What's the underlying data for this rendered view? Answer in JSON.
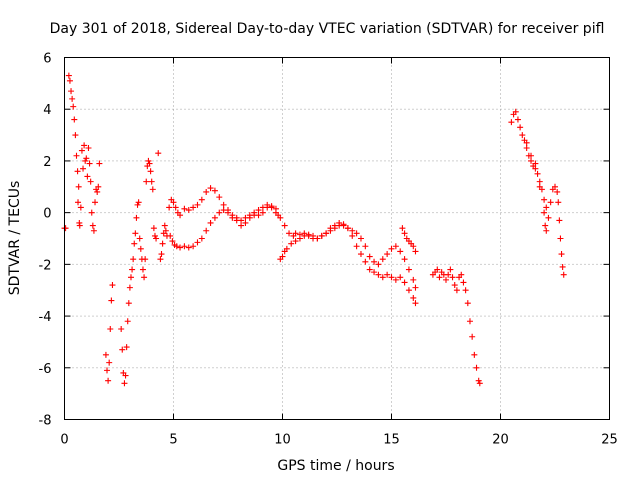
{
  "chart_data": {
    "type": "scatter",
    "title": "Day 301 of 2018, Sidereal Day-to-day VTEC variation (SDTVAR) for receiver pifl",
    "xlabel": "GPS time / hours",
    "ylabel": "SDTVAR / TECUs",
    "xlim": [
      0,
      25
    ],
    "ylim": [
      -8,
      6
    ],
    "xticks": [
      0,
      5,
      10,
      15,
      20,
      25
    ],
    "yticks": [
      -8,
      -6,
      -4,
      -2,
      0,
      2,
      4,
      6
    ],
    "grid": true,
    "marker": "+",
    "color": "#ff0000",
    "series": [
      {
        "name": "SDTVAR",
        "points": [
          [
            0.0,
            -0.6
          ],
          [
            0.05,
            -0.6
          ],
          [
            0.2,
            5.3
          ],
          [
            0.25,
            5.1
          ],
          [
            0.3,
            4.7
          ],
          [
            0.35,
            4.4
          ],
          [
            0.4,
            4.1
          ],
          [
            0.45,
            3.6
          ],
          [
            0.5,
            3.0
          ],
          [
            0.55,
            2.2
          ],
          [
            0.6,
            1.6
          ],
          [
            0.62,
            0.4
          ],
          [
            0.65,
            1.0
          ],
          [
            0.68,
            -0.4
          ],
          [
            0.7,
            -0.5
          ],
          [
            0.75,
            0.2
          ],
          [
            0.8,
            2.4
          ],
          [
            0.85,
            1.7
          ],
          [
            0.9,
            2.6
          ],
          [
            0.95,
            2.0
          ],
          [
            1.0,
            2.1
          ],
          [
            1.05,
            1.4
          ],
          [
            1.1,
            2.5
          ],
          [
            1.15,
            1.9
          ],
          [
            1.2,
            1.2
          ],
          [
            1.25,
            0.0
          ],
          [
            1.3,
            -0.5
          ],
          [
            1.35,
            -0.7
          ],
          [
            1.4,
            0.4
          ],
          [
            1.45,
            0.9
          ],
          [
            1.5,
            0.8
          ],
          [
            1.55,
            1.0
          ],
          [
            1.6,
            1.9
          ],
          [
            1.9,
            -5.5
          ],
          [
            1.95,
            -6.1
          ],
          [
            2.0,
            -6.5
          ],
          [
            2.05,
            -5.8
          ],
          [
            2.1,
            -4.5
          ],
          [
            2.15,
            -3.4
          ],
          [
            2.2,
            -2.8
          ],
          [
            2.6,
            -4.5
          ],
          [
            2.65,
            -5.3
          ],
          [
            2.7,
            -6.2
          ],
          [
            2.75,
            -6.6
          ],
          [
            2.8,
            -6.3
          ],
          [
            2.85,
            -5.2
          ],
          [
            2.9,
            -4.2
          ],
          [
            2.95,
            -3.5
          ],
          [
            3.0,
            -2.9
          ],
          [
            3.05,
            -2.5
          ],
          [
            3.1,
            -2.2
          ],
          [
            3.15,
            -1.8
          ],
          [
            3.2,
            -1.2
          ],
          [
            3.25,
            -0.8
          ],
          [
            3.3,
            -0.2
          ],
          [
            3.35,
            0.3
          ],
          [
            3.4,
            0.4
          ],
          [
            3.45,
            -1.0
          ],
          [
            3.5,
            -1.4
          ],
          [
            3.55,
            -1.8
          ],
          [
            3.6,
            -2.2
          ],
          [
            3.65,
            -2.5
          ],
          [
            3.7,
            -1.8
          ],
          [
            3.75,
            1.2
          ],
          [
            3.8,
            1.8
          ],
          [
            3.85,
            2.0
          ],
          [
            3.9,
            1.9
          ],
          [
            3.95,
            1.6
          ],
          [
            4.0,
            1.2
          ],
          [
            4.05,
            0.9
          ],
          [
            4.1,
            -0.6
          ],
          [
            4.15,
            -0.9
          ],
          [
            4.2,
            -1.0
          ],
          [
            4.3,
            2.3
          ],
          [
            4.4,
            -1.8
          ],
          [
            4.45,
            -1.6
          ],
          [
            4.5,
            -1.2
          ],
          [
            4.55,
            -0.8
          ],
          [
            4.6,
            -0.5
          ],
          [
            4.65,
            -0.7
          ],
          [
            4.7,
            -0.9
          ],
          [
            4.8,
            0.2
          ],
          [
            4.9,
            0.5
          ],
          [
            5.0,
            0.4
          ],
          [
            5.1,
            0.2
          ],
          [
            5.2,
            0.0
          ],
          [
            5.3,
            -0.1
          ],
          [
            4.85,
            -0.9
          ],
          [
            4.95,
            -1.1
          ],
          [
            5.05,
            -1.25
          ],
          [
            5.15,
            -1.3
          ],
          [
            5.3,
            -1.35
          ],
          [
            5.5,
            -1.3
          ],
          [
            5.7,
            -1.35
          ],
          [
            5.9,
            -1.3
          ],
          [
            6.1,
            -1.15
          ],
          [
            6.3,
            -1.0
          ],
          [
            6.5,
            -0.7
          ],
          [
            6.7,
            -0.4
          ],
          [
            6.9,
            -0.2
          ],
          [
            7.1,
            0.0
          ],
          [
            7.3,
            0.1
          ],
          [
            7.5,
            0.0
          ],
          [
            7.7,
            -0.2
          ],
          [
            5.5,
            0.15
          ],
          [
            5.7,
            0.1
          ],
          [
            5.9,
            0.2
          ],
          [
            6.1,
            0.3
          ],
          [
            6.3,
            0.5
          ],
          [
            6.5,
            0.8
          ],
          [
            6.7,
            0.95
          ],
          [
            6.9,
            0.85
          ],
          [
            7.1,
            0.6
          ],
          [
            7.3,
            0.3
          ],
          [
            7.5,
            0.1
          ],
          [
            7.7,
            -0.1
          ],
          [
            7.9,
            -0.3
          ],
          [
            8.1,
            -0.5
          ],
          [
            8.3,
            -0.4
          ],
          [
            8.5,
            -0.2
          ],
          [
            8.7,
            -0.1
          ],
          [
            8.9,
            0.1
          ],
          [
            9.1,
            0.2
          ],
          [
            9.3,
            0.3
          ],
          [
            9.5,
            0.2
          ],
          [
            9.7,
            0.0
          ],
          [
            9.9,
            -0.2
          ],
          [
            10.1,
            -0.5
          ],
          [
            10.3,
            -0.8
          ],
          [
            10.5,
            -0.9
          ],
          [
            7.9,
            -0.2
          ],
          [
            8.1,
            -0.3
          ],
          [
            8.3,
            -0.2
          ],
          [
            8.5,
            -0.1
          ],
          [
            8.7,
            0.0
          ],
          [
            8.9,
            -0.1
          ],
          [
            9.1,
            0.0
          ],
          [
            9.3,
            0.2
          ],
          [
            9.5,
            0.25
          ],
          [
            9.7,
            0.15
          ],
          [
            9.8,
            -0.1
          ],
          [
            9.9,
            -1.8
          ],
          [
            10.0,
            -1.7
          ],
          [
            10.1,
            -1.5
          ],
          [
            10.2,
            -1.4
          ],
          [
            10.4,
            -1.2
          ],
          [
            10.6,
            -1.1
          ],
          [
            10.8,
            -1.0
          ],
          [
            11.0,
            -0.9
          ],
          [
            11.2,
            -0.85
          ],
          [
            11.4,
            -0.9
          ],
          [
            11.6,
            -1.0
          ],
          [
            11.8,
            -0.9
          ],
          [
            12.0,
            -0.8
          ],
          [
            12.2,
            -0.7
          ],
          [
            12.4,
            -0.6
          ],
          [
            12.6,
            -0.5
          ],
          [
            12.8,
            -0.5
          ],
          [
            13.0,
            -0.6
          ],
          [
            13.2,
            -0.9
          ],
          [
            13.4,
            -1.3
          ],
          [
            13.6,
            -1.6
          ],
          [
            13.8,
            -1.9
          ],
          [
            14.0,
            -2.2
          ],
          [
            14.2,
            -2.3
          ],
          [
            14.4,
            -2.4
          ],
          [
            14.6,
            -2.5
          ],
          [
            14.8,
            -2.4
          ],
          [
            15.0,
            -2.5
          ],
          [
            15.2,
            -2.6
          ],
          [
            15.4,
            -2.5
          ],
          [
            15.6,
            -2.7
          ],
          [
            15.8,
            -3.0
          ],
          [
            16.0,
            -3.3
          ],
          [
            16.1,
            -3.5
          ],
          [
            10.6,
            -0.8
          ],
          [
            10.8,
            -0.85
          ],
          [
            11.0,
            -0.8
          ],
          [
            11.2,
            -0.9
          ],
          [
            11.4,
            -1.0
          ],
          [
            11.6,
            -1.0
          ],
          [
            11.8,
            -0.9
          ],
          [
            12.0,
            -0.8
          ],
          [
            12.2,
            -0.6
          ],
          [
            12.4,
            -0.5
          ],
          [
            12.6,
            -0.4
          ],
          [
            12.8,
            -0.45
          ],
          [
            13.0,
            -0.6
          ],
          [
            13.2,
            -0.7
          ],
          [
            13.4,
            -0.8
          ],
          [
            13.6,
            -1.0
          ],
          [
            13.8,
            -1.3
          ],
          [
            14.0,
            -1.7
          ],
          [
            14.2,
            -1.9
          ],
          [
            14.4,
            -2.0
          ],
          [
            14.6,
            -1.8
          ],
          [
            14.8,
            -1.6
          ],
          [
            15.0,
            -1.4
          ],
          [
            15.2,
            -1.3
          ],
          [
            15.4,
            -1.5
          ],
          [
            15.6,
            -1.8
          ],
          [
            15.8,
            -2.2
          ],
          [
            16.0,
            -2.6
          ],
          [
            16.1,
            -2.9
          ],
          [
            15.5,
            -0.6
          ],
          [
            15.6,
            -0.8
          ],
          [
            15.7,
            -1.0
          ],
          [
            15.8,
            -1.1
          ],
          [
            15.9,
            -1.2
          ],
          [
            16.0,
            -1.3
          ],
          [
            16.1,
            -1.5
          ],
          [
            16.9,
            -2.4
          ],
          [
            17.0,
            -2.3
          ],
          [
            17.1,
            -2.2
          ],
          [
            17.2,
            -2.5
          ],
          [
            17.3,
            -2.3
          ],
          [
            17.4,
            -2.4
          ],
          [
            17.5,
            -2.6
          ],
          [
            17.6,
            -2.4
          ],
          [
            17.7,
            -2.2
          ],
          [
            17.8,
            -2.5
          ],
          [
            17.9,
            -2.8
          ],
          [
            18.0,
            -3.0
          ],
          [
            18.1,
            -2.5
          ],
          [
            18.2,
            -2.4
          ],
          [
            18.3,
            -2.7
          ],
          [
            18.4,
            -3.0
          ],
          [
            18.5,
            -3.5
          ],
          [
            18.6,
            -4.2
          ],
          [
            18.7,
            -4.8
          ],
          [
            18.8,
            -5.5
          ],
          [
            18.9,
            -6.0
          ],
          [
            19.0,
            -6.5
          ],
          [
            19.05,
            -6.6
          ],
          [
            20.5,
            3.5
          ],
          [
            20.6,
            3.8
          ],
          [
            20.7,
            3.9
          ],
          [
            20.8,
            3.6
          ],
          [
            20.9,
            3.3
          ],
          [
            21.0,
            3.0
          ],
          [
            21.1,
            2.8
          ],
          [
            21.2,
            2.5
          ],
          [
            21.3,
            2.2
          ],
          [
            21.4,
            2.0
          ],
          [
            21.5,
            1.8
          ],
          [
            21.6,
            1.9
          ],
          [
            21.7,
            1.5
          ],
          [
            21.8,
            1.2
          ],
          [
            21.9,
            0.9
          ],
          [
            22.0,
            0.5
          ],
          [
            22.1,
            0.2
          ],
          [
            22.2,
            -0.2
          ],
          [
            22.3,
            0.4
          ],
          [
            22.4,
            0.9
          ],
          [
            22.5,
            1.0
          ],
          [
            22.6,
            0.8
          ],
          [
            22.65,
            0.4
          ],
          [
            22.7,
            -0.3
          ],
          [
            22.75,
            -1.0
          ],
          [
            22.8,
            -1.6
          ],
          [
            22.85,
            -2.1
          ],
          [
            22.9,
            -2.4
          ],
          [
            21.2,
            2.7
          ],
          [
            21.4,
            2.2
          ],
          [
            21.6,
            1.7
          ],
          [
            21.8,
            1.0
          ],
          [
            22.0,
            0.0
          ],
          [
            22.05,
            -0.5
          ],
          [
            22.1,
            -0.7
          ]
        ]
      }
    ]
  }
}
